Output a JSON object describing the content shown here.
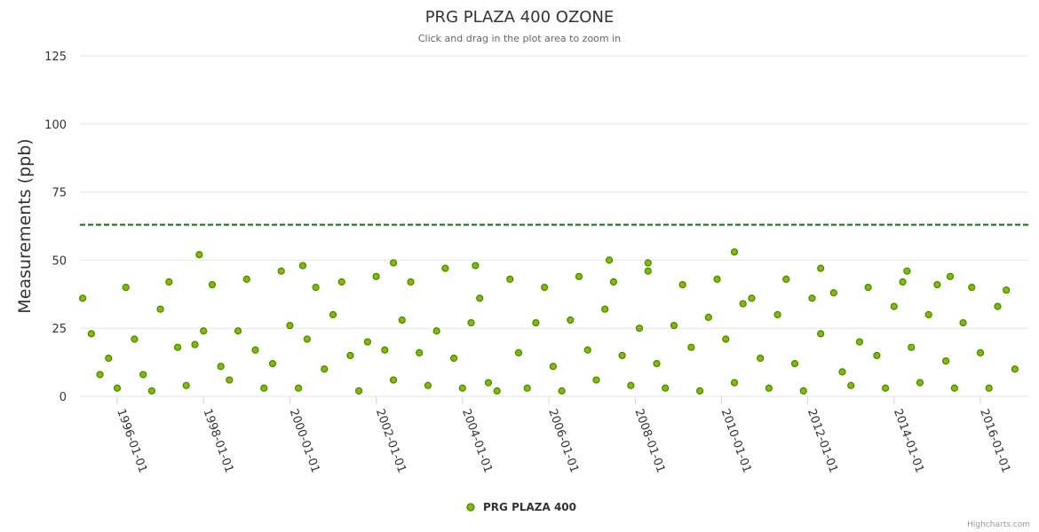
{
  "chart_data": {
    "type": "scatter",
    "title": "PRG PLAZA 400 OZONE",
    "subtitle": "Click and drag in the plot area to zoom in",
    "xlabel": "",
    "ylabel": "Measurements (ppb)",
    "ylim": [
      0,
      125
    ],
    "yticks": [
      0,
      25,
      50,
      75,
      100,
      125
    ],
    "xlim": [
      1995.0,
      2017.0
    ],
    "xticks": [
      {
        "value": 1996,
        "label": "1996-01-01"
      },
      {
        "value": 1998,
        "label": "1998-01-01"
      },
      {
        "value": 2000,
        "label": "2000-01-01"
      },
      {
        "value": 2002,
        "label": "2002-01-01"
      },
      {
        "value": 2004,
        "label": "2004-01-01"
      },
      {
        "value": 2006,
        "label": "2006-01-01"
      },
      {
        "value": 2008,
        "label": "2008-01-01"
      },
      {
        "value": 2010,
        "label": "2010-01-01"
      },
      {
        "value": 2012,
        "label": "2012-01-01"
      },
      {
        "value": 2014,
        "label": "2014-01-01"
      },
      {
        "value": 2016,
        "label": "2016-01-01"
      }
    ],
    "threshold": {
      "value": 63,
      "color": "#007700",
      "style": "dashed"
    },
    "series": [
      {
        "name": "PRG PLAZA 400",
        "fill": "#88b800",
        "stroke": "#3d8a00",
        "pattern": "daily values oscillate seasonally, roughly 0 to 45 ppb each year; data gaps mid-2005 and mid-2012",
        "x": [
          1995.2,
          1995.4,
          1995.6,
          1995.8,
          1996.0,
          1996.2,
          1996.4,
          1996.6,
          1996.8,
          1997.0,
          1997.2,
          1997.4,
          1997.6,
          1997.8,
          1998.0,
          1998.2,
          1998.4,
          1998.6,
          1998.8,
          1999.0,
          1999.2,
          1999.4,
          1999.6,
          1999.8,
          2000.0,
          2000.2,
          2000.4,
          2000.6,
          2000.8,
          2001.0,
          2001.2,
          2001.4,
          2001.6,
          2001.8,
          2002.0,
          2002.2,
          2002.4,
          2002.6,
          2002.8,
          2003.0,
          2003.2,
          2003.4,
          2003.6,
          2003.8,
          2004.0,
          2004.2,
          2004.4,
          2004.6,
          2004.8,
          2005.1,
          2005.3,
          2005.5,
          2005.7,
          2005.9,
          2006.1,
          2006.3,
          2006.5,
          2006.7,
          2006.9,
          2007.1,
          2007.3,
          2007.5,
          2007.7,
          2007.9,
          2008.1,
          2008.3,
          2008.5,
          2008.7,
          2008.9,
          2009.1,
          2009.3,
          2009.5,
          2009.7,
          2009.9,
          2010.1,
          2010.3,
          2010.5,
          2010.7,
          2010.9,
          2011.1,
          2011.3,
          2011.5,
          2011.7,
          2011.9,
          2012.1,
          2012.3,
          2012.6,
          2012.8,
          2013.0,
          2013.2,
          2013.4,
          2013.6,
          2013.8,
          2014.0,
          2014.2,
          2014.4,
          2014.6,
          2014.8,
          2015.0,
          2015.2,
          2015.4,
          2015.6,
          2015.8,
          2016.0,
          2016.2,
          2016.4,
          2016.6,
          2016.8,
          1997.9,
          2000.3,
          2002.4,
          2004.3,
          2007.4,
          2008.3,
          2010.3,
          2012.3,
          2014.3,
          2015.3
        ],
        "values": [
          36,
          23,
          8,
          14,
          3,
          40,
          21,
          8,
          2,
          32,
          42,
          18,
          4,
          19,
          24,
          41,
          11,
          6,
          24,
          43,
          17,
          3,
          12,
          46,
          26,
          3,
          21,
          40,
          10,
          30,
          42,
          15,
          2,
          20,
          44,
          17,
          6,
          28,
          42,
          16,
          4,
          24,
          47,
          14,
          3,
          27,
          36,
          5,
          2,
          43,
          16,
          3,
          27,
          40,
          11,
          2,
          28,
          44,
          17,
          6,
          32,
          42,
          15,
          4,
          25,
          46,
          12,
          3,
          26,
          41,
          18,
          2,
          29,
          43,
          21,
          5,
          34,
          36,
          14,
          3,
          30,
          43,
          12,
          2,
          36,
          23,
          38,
          9,
          4,
          20,
          40,
          15,
          3,
          33,
          42,
          18,
          5,
          30,
          41,
          13,
          3,
          27,
          40,
          16,
          3,
          33,
          39,
          10,
          52,
          48,
          49,
          48,
          50,
          49,
          53,
          47,
          46,
          44
        ]
      }
    ],
    "legend": {
      "position": "bottom-center",
      "entries": [
        "PRG PLAZA 400"
      ]
    },
    "credits": "Highcharts.com"
  }
}
